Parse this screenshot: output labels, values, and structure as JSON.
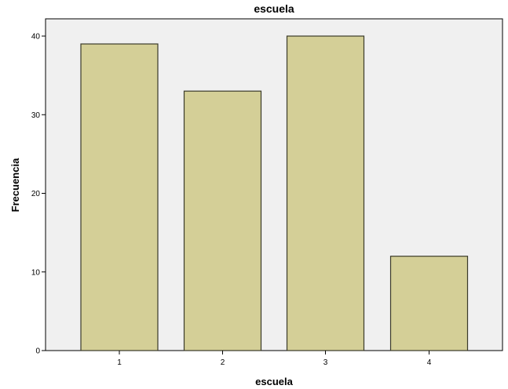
{
  "chart_data": {
    "type": "bar",
    "title": "escuela",
    "xlabel": "escuela",
    "ylabel": "Frecuencia",
    "categories": [
      "1",
      "2",
      "3",
      "4"
    ],
    "values": [
      39,
      33,
      40,
      12
    ],
    "ylim": [
      0,
      40
    ],
    "yticks": [
      0,
      10,
      20,
      30,
      40
    ],
    "grid": false,
    "legend": "none",
    "colors": {
      "bar_fill": "#d4cf97",
      "bar_stroke": "#3a3a2a",
      "plot_background": "#f0f0f0",
      "frame": "#000000"
    }
  }
}
